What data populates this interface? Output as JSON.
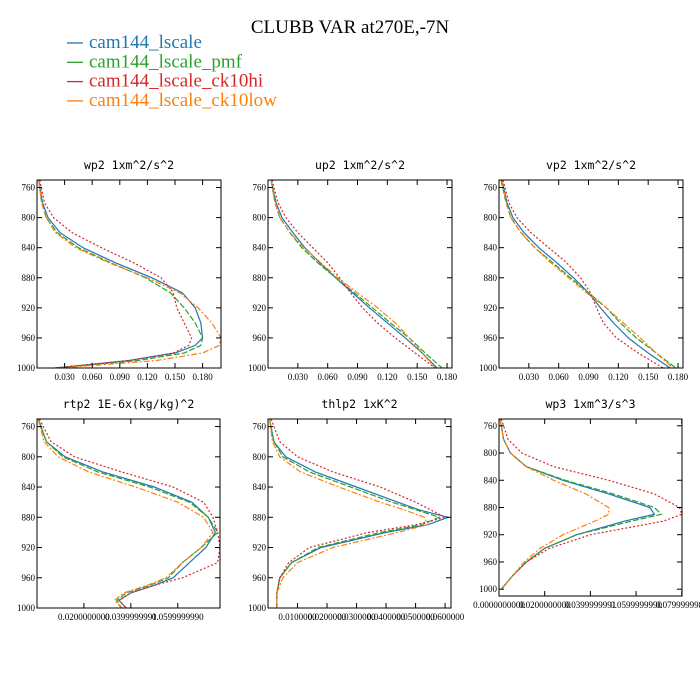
{
  "chart_data": {
    "title": "CLUBB VAR at270E,-7N",
    "type": "line",
    "series_names": [
      "cam144_lscale",
      "cam144_lscale_pmf",
      "cam144_lscale_ck10hi",
      "cam144_lscale_ck10low"
    ],
    "series_colors": [
      "#1f77b4",
      "#2ca02c",
      "#d62728",
      "#ff7f0e"
    ],
    "legend_position": "top-left",
    "panels": [
      {
        "title": "wp2  1xm^2/s^2",
        "xlim": [
          0,
          0.2
        ],
        "ylim": [
          1000,
          750
        ],
        "xticks": [
          0.03,
          0.06,
          0.09,
          0.12,
          0.15,
          0.18
        ],
        "xtick_labels": [
          "0.030",
          "0.060",
          "0.090",
          "0.120",
          "0.150",
          "0.180"
        ],
        "yticks": [
          760,
          800,
          840,
          880,
          920,
          960,
          1000
        ],
        "y": [
          750,
          780,
          800,
          820,
          840,
          860,
          880,
          900,
          920,
          940,
          960,
          970,
          980,
          990,
          1000
        ],
        "series": [
          {
            "name": "cam144_lscale",
            "values": [
              0.002,
              0.006,
              0.012,
              0.025,
              0.05,
              0.085,
              0.125,
              0.158,
              0.172,
              0.178,
              0.18,
              0.172,
              0.15,
              0.1,
              0.02
            ]
          },
          {
            "name": "cam144_lscale_pmf",
            "values": [
              0.002,
              0.005,
              0.01,
              0.022,
              0.045,
              0.08,
              0.118,
              0.145,
              0.16,
              0.172,
              0.18,
              0.178,
              0.16,
              0.11,
              0.02
            ]
          },
          {
            "name": "cam144_lscale_ck10hi",
            "values": [
              0.003,
              0.008,
              0.018,
              0.038,
              0.07,
              0.105,
              0.135,
              0.148,
              0.152,
              0.16,
              0.168,
              0.165,
              0.148,
              0.1,
              0.02
            ]
          },
          {
            "name": "cam144_lscale_ck10low",
            "values": [
              0.002,
              0.005,
              0.01,
              0.02,
              0.042,
              0.078,
              0.12,
              0.155,
              0.175,
              0.19,
              0.2,
              0.198,
              0.18,
              0.13,
              0.025
            ]
          }
        ]
      },
      {
        "title": "up2  1xm^2/s^2",
        "xlim": [
          0,
          0.185
        ],
        "ylim": [
          1000,
          750
        ],
        "xticks": [
          0.03,
          0.06,
          0.09,
          0.12,
          0.15,
          0.18
        ],
        "xtick_labels": [
          "0.030",
          "0.060",
          "0.090",
          "0.120",
          "0.150",
          "0.180"
        ],
        "yticks": [
          760,
          800,
          840,
          880,
          920,
          960,
          1000
        ],
        "y": [
          750,
          780,
          800,
          820,
          840,
          860,
          880,
          900,
          920,
          940,
          960,
          980,
          1000
        ],
        "series": [
          {
            "name": "cam144_lscale",
            "values": [
              0.003,
              0.008,
              0.014,
              0.025,
              0.037,
              0.052,
              0.068,
              0.085,
              0.102,
              0.12,
              0.138,
              0.155,
              0.17
            ]
          },
          {
            "name": "cam144_lscale_pmf",
            "values": [
              0.003,
              0.007,
              0.012,
              0.022,
              0.034,
              0.05,
              0.068,
              0.087,
              0.105,
              0.123,
              0.142,
              0.158,
              0.175
            ]
          },
          {
            "name": "cam144_lscale_ck10hi",
            "values": [
              0.004,
              0.01,
              0.018,
              0.03,
              0.045,
              0.06,
              0.072,
              0.083,
              0.095,
              0.11,
              0.128,
              0.148,
              0.168
            ]
          },
          {
            "name": "cam144_lscale_ck10low",
            "values": [
              0.003,
              0.007,
              0.012,
              0.022,
              0.036,
              0.053,
              0.07,
              0.09,
              0.11,
              0.128,
              0.142,
              0.155,
              0.168
            ]
          }
        ]
      },
      {
        "title": "vp2  1xm^2/s^2",
        "xlim": [
          0,
          0.185
        ],
        "ylim": [
          1000,
          750
        ],
        "xticks": [
          0.03,
          0.06,
          0.09,
          0.12,
          0.15,
          0.18
        ],
        "xtick_labels": [
          "0.030",
          "0.060",
          "0.090",
          "0.120",
          "0.150",
          "0.180"
        ],
        "yticks": [
          760,
          800,
          840,
          880,
          920,
          960,
          1000
        ],
        "y": [
          750,
          780,
          800,
          820,
          840,
          860,
          880,
          900,
          920,
          940,
          960,
          980,
          1000
        ],
        "series": [
          {
            "name": "cam144_lscale",
            "values": [
              0.003,
              0.008,
              0.014,
              0.025,
              0.04,
              0.058,
              0.075,
              0.09,
              0.102,
              0.115,
              0.13,
              0.15,
              0.172
            ]
          },
          {
            "name": "cam144_lscale_pmf",
            "values": [
              0.002,
              0.007,
              0.012,
              0.022,
              0.036,
              0.054,
              0.072,
              0.09,
              0.108,
              0.122,
              0.138,
              0.158,
              0.178
            ]
          },
          {
            "name": "cam144_lscale_ck10hi",
            "values": [
              0.004,
              0.01,
              0.018,
              0.032,
              0.05,
              0.068,
              0.082,
              0.092,
              0.098,
              0.105,
              0.118,
              0.14,
              0.165
            ]
          },
          {
            "name": "cam144_lscale_ck10low",
            "values": [
              0.003,
              0.007,
              0.012,
              0.022,
              0.036,
              0.052,
              0.07,
              0.088,
              0.108,
              0.125,
              0.142,
              0.158,
              0.175
            ]
          }
        ]
      },
      {
        "title": "rtp2  1E-6x(kg/kg)^2",
        "xlim": [
          0,
          0.078
        ],
        "ylim": [
          1000,
          750
        ],
        "xticks": [
          0.02,
          0.04,
          0.06
        ],
        "xtick_labels": [
          "0.0200000000",
          "0.0399999991",
          "0.0599999990"
        ],
        "yticks": [
          760,
          800,
          840,
          880,
          920,
          960,
          1000
        ],
        "y": [
          750,
          780,
          800,
          820,
          840,
          860,
          880,
          900,
          920,
          940,
          960,
          970,
          980,
          990,
          1000
        ],
        "series": [
          {
            "name": "cam144_lscale",
            "values": [
              0.0005,
              0.004,
              0.012,
              0.028,
              0.05,
              0.066,
              0.073,
              0.076,
              0.072,
              0.065,
              0.058,
              0.05,
              0.04,
              0.035,
              0.038
            ]
          },
          {
            "name": "cam144_lscale_pmf",
            "values": [
              0.0005,
              0.004,
              0.011,
              0.026,
              0.048,
              0.065,
              0.073,
              0.077,
              0.07,
              0.062,
              0.056,
              0.048,
              0.038,
              0.034,
              0.036
            ]
          },
          {
            "name": "cam144_lscale_ck10hi",
            "values": [
              0.001,
              0.006,
              0.016,
              0.036,
              0.058,
              0.071,
              0.075,
              0.077,
              0.078,
              0.077,
              0.062,
              0.05,
              0.04,
              0.035,
              0.038
            ]
          },
          {
            "name": "cam144_lscale_ck10low",
            "values": [
              0.0005,
              0.003,
              0.009,
              0.022,
              0.042,
              0.06,
              0.071,
              0.075,
              0.07,
              0.062,
              0.055,
              0.047,
              0.037,
              0.033,
              0.036
            ]
          }
        ]
      },
      {
        "title": "thlp2  1xK^2",
        "xlim": [
          0,
          0.062
        ],
        "ylim": [
          1000,
          750
        ],
        "xticks": [
          0.01,
          0.02,
          0.03,
          0.04,
          0.05,
          0.06
        ],
        "xtick_labels": [
          "0.0100000",
          "0.0200000",
          "0.0300000",
          "0.0400000",
          "0.0500000",
          "0.0600000"
        ],
        "yticks": [
          760,
          800,
          840,
          880,
          920,
          960,
          1000
        ],
        "y": [
          750,
          780,
          800,
          820,
          840,
          860,
          870,
          880,
          890,
          900,
          920,
          940,
          960,
          980,
          1000
        ],
        "series": [
          {
            "name": "cam144_lscale",
            "values": [
              0.0005,
              0.002,
              0.006,
              0.016,
              0.03,
              0.044,
              0.051,
              0.061,
              0.054,
              0.04,
              0.018,
              0.008,
              0.004,
              0.003,
              0.003
            ]
          },
          {
            "name": "cam144_lscale_pmf",
            "values": [
              0.0005,
              0.002,
              0.005,
              0.014,
              0.028,
              0.042,
              0.05,
              0.058,
              0.052,
              0.038,
              0.017,
              0.008,
              0.004,
              0.003,
              0.003
            ]
          },
          {
            "name": "cam144_lscale_ck10hi",
            "values": [
              0.001,
              0.004,
              0.01,
              0.022,
              0.038,
              0.05,
              0.055,
              0.06,
              0.05,
              0.034,
              0.014,
              0.007,
              0.004,
              0.003,
              0.003
            ]
          },
          {
            "name": "cam144_lscale_ck10low",
            "values": [
              0.0005,
              0.0015,
              0.004,
              0.011,
              0.024,
              0.038,
              0.046,
              0.053,
              0.054,
              0.044,
              0.022,
              0.01,
              0.005,
              0.003,
              0.003
            ]
          }
        ]
      },
      {
        "title": "wp3  1xm^3/s^3",
        "xlim": [
          0,
          0.0801
        ],
        "ylim": [
          1010,
          750
        ],
        "xticks": [
          0,
          0.02,
          0.04,
          0.06,
          0.08
        ],
        "xtick_labels": [
          "0.0000000000",
          "0.0200000000",
          "0.0399999991",
          "0.0599999990",
          "0.0799999980"
        ],
        "yticks": [
          760,
          800,
          840,
          880,
          920,
          960,
          1000
        ],
        "y": [
          750,
          780,
          800,
          820,
          840,
          860,
          880,
          890,
          900,
          920,
          940,
          960,
          980,
          1000
        ],
        "series": [
          {
            "name": "cam144_lscale",
            "values": [
              0.0005,
              0.002,
              0.005,
              0.012,
              0.028,
              0.048,
              0.066,
              0.068,
              0.055,
              0.034,
              0.02,
              0.012,
              0.006,
              0.001
            ]
          },
          {
            "name": "cam144_lscale_pmf",
            "values": [
              0.0005,
              0.002,
              0.005,
              0.012,
              0.029,
              0.05,
              0.068,
              0.071,
              0.058,
              0.034,
              0.02,
              0.012,
              0.006,
              0.001
            ]
          },
          {
            "name": "cam144_lscale_ck10hi",
            "values": [
              0.001,
              0.004,
              0.01,
              0.024,
              0.048,
              0.068,
              0.079,
              0.08,
              0.072,
              0.04,
              0.022,
              0.012,
              0.006,
              0.001
            ]
          },
          {
            "name": "cam144_lscale_ck10low",
            "values": [
              0.0005,
              0.002,
              0.005,
              0.012,
              0.024,
              0.038,
              0.048,
              0.048,
              0.042,
              0.028,
              0.018,
              0.011,
              0.006,
              0.001
            ]
          }
        ]
      }
    ]
  }
}
